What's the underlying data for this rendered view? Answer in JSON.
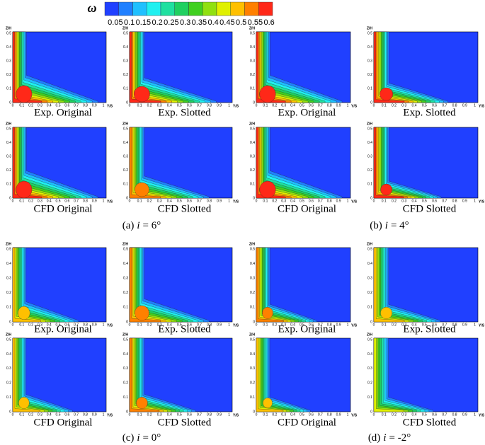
{
  "colorbar": {
    "symbol": "ω",
    "ticks": [
      0.05,
      0.1,
      0.15,
      0.2,
      0.25,
      0.3,
      0.35,
      0.4,
      0.45,
      0.5,
      0.55,
      0.6
    ],
    "colors": [
      "#2040ff",
      "#2080ff",
      "#20c0ff",
      "#20f0f0",
      "#20e0a0",
      "#20d060",
      "#40d020",
      "#90e010",
      "#e0f000",
      "#ffc000",
      "#ff8000",
      "#ff2818"
    ]
  },
  "axes": {
    "z_label": "Z/H",
    "y_label": "Y/S",
    "z_ticks": [
      0,
      0.1,
      0.2,
      0.3,
      0.4,
      0.5
    ],
    "y_ticks": [
      0,
      0.1,
      0.2,
      0.3,
      0.4,
      0.5,
      0.6,
      0.7,
      0.8,
      0.9,
      1
    ]
  },
  "groups": [
    {
      "label": "(a)",
      "variable": "i",
      "value": "= 6°",
      "panels": [
        "Exp. Original",
        "Exp. Slotted",
        "CFD Original",
        "CFD Slotted"
      ]
    },
    {
      "label": "(b)",
      "variable": "i",
      "value": "= 4°",
      "panels": [
        "Exp. Original",
        "Exp. Slotted",
        "CFD Original",
        "CFD Slotted"
      ]
    },
    {
      "label": "(c)",
      "variable": "i",
      "value": "= 0°",
      "panels": [
        "Exp. Original",
        "Exp. Slotted",
        "CFD Original",
        "CFD Slotted"
      ]
    },
    {
      "label": "(d)",
      "variable": "i",
      "value": "= -2°",
      "panels": [
        "Exp. Original",
        "Exp. Slotted",
        "CFD Original",
        "CFD Slotted"
      ]
    }
  ]
}
